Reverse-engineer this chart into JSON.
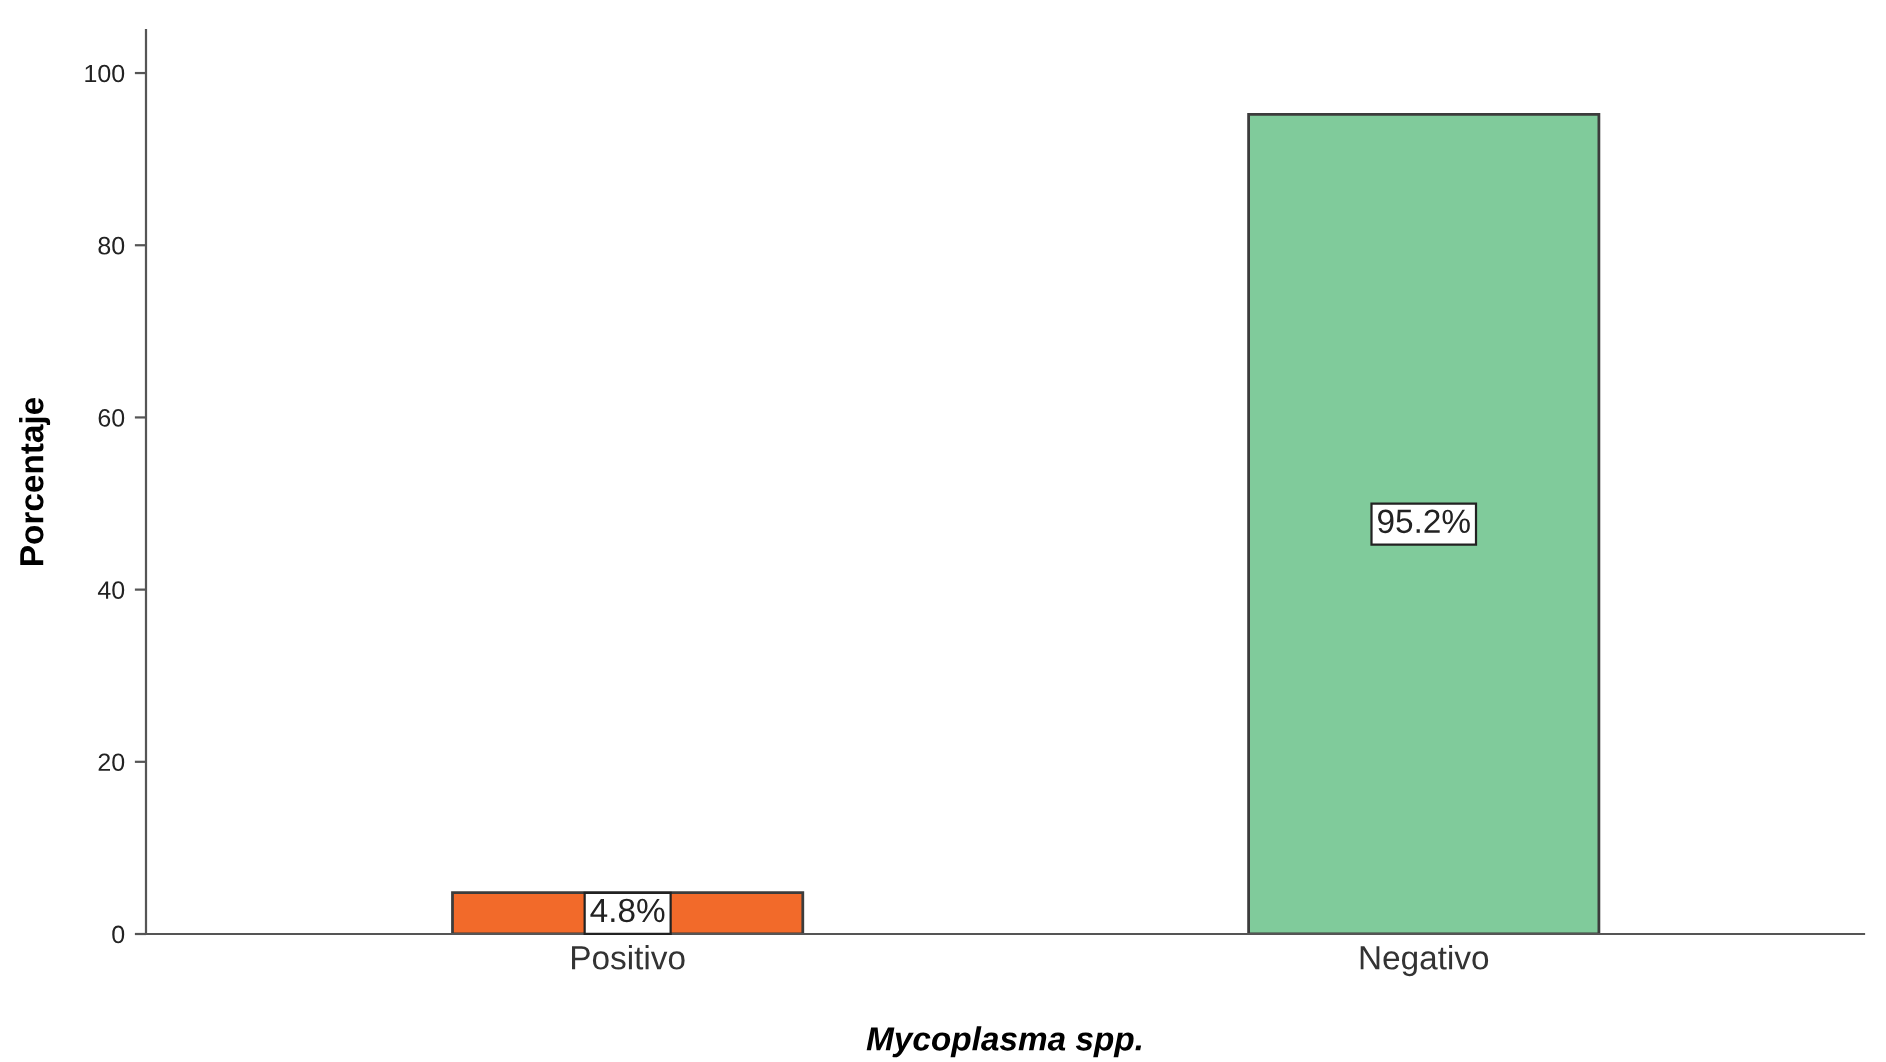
{
  "chart_data": {
    "type": "bar",
    "xlabel": "Mycoplasma spp.",
    "ylabel": "Porcentaje",
    "categories": [
      "Positivo",
      "Negativo"
    ],
    "values": [
      4.8,
      95.2
    ],
    "colors": [
      "#f26a2a",
      "#80cb9b"
    ],
    "value_labels": [
      "4.8%",
      "95.2%"
    ],
    "ylim": [
      0,
      105
    ],
    "yticks": [
      0,
      20,
      40,
      60,
      80,
      100
    ],
    "grid": false,
    "legend": false
  }
}
